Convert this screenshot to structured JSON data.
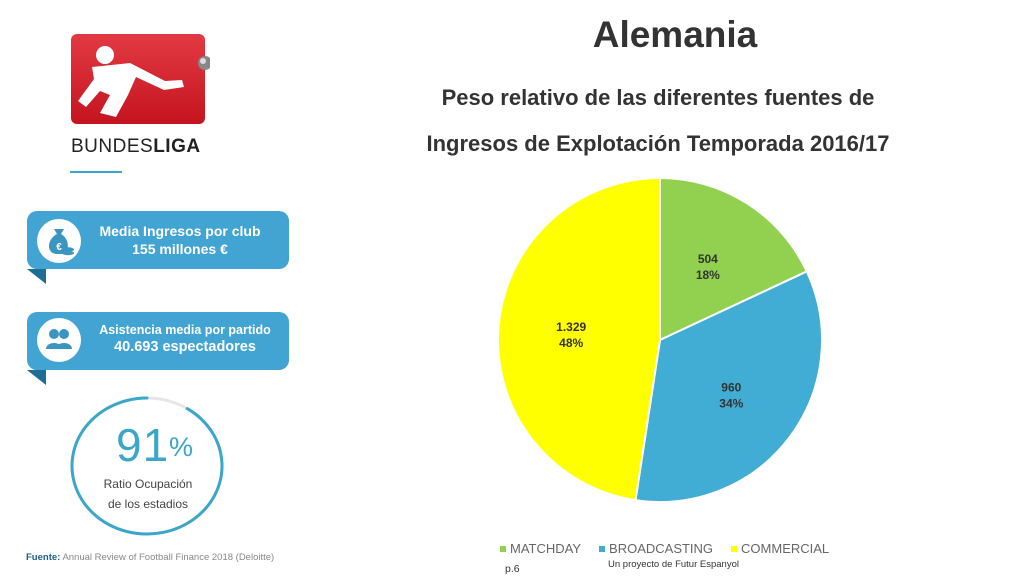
{
  "header": {
    "title": "Alemania",
    "subtitle_line1": "Peso relativo de las diferentes fuentes de",
    "subtitle_line2": "Ingresos de Explotación Temporada 2016/17"
  },
  "logo": {
    "wordmark": "BUNDESLIGA",
    "wordmark_regular": "BUNDES",
    "wordmark_bold": "LIGA"
  },
  "cards": {
    "income": {
      "line1": "Media Ingresos por club",
      "line2": "155 millones €",
      "icon": "money-bag-icon"
    },
    "attendance": {
      "line1": "Asistencia media por partido",
      "line2": "40.693 espectadores",
      "icon": "people-icon"
    }
  },
  "gauge": {
    "value": "91",
    "unit": "%",
    "fraction": 0.91,
    "label_line1": "Ratio Ocupación",
    "label_line2": "de los estadios"
  },
  "chart_data": {
    "type": "pie",
    "slices": [
      {
        "name": "MATCHDAY",
        "value": 504,
        "value_label": "504",
        "percent_label": "18%",
        "color": "#92d050"
      },
      {
        "name": "BROADCASTING",
        "value": 960,
        "value_label": "960",
        "percent_label": "34%",
        "color": "#41acd4"
      },
      {
        "name": "COMMERCIAL",
        "value": 1329,
        "value_label": "1.329",
        "percent_label": "48%",
        "color": "#ffff00"
      }
    ],
    "legend_position": "bottom"
  },
  "footer": {
    "source_label": "Fuente:",
    "source_text": "Annual Review of Football Finance 2018 (Deloitte)",
    "page": "p.6",
    "project": "Un proyecto de Futur Espanyol"
  },
  "colors": {
    "accent": "#42a4d3",
    "accent_dark": "#1d6e94",
    "logo_red": "#d81e2c"
  }
}
